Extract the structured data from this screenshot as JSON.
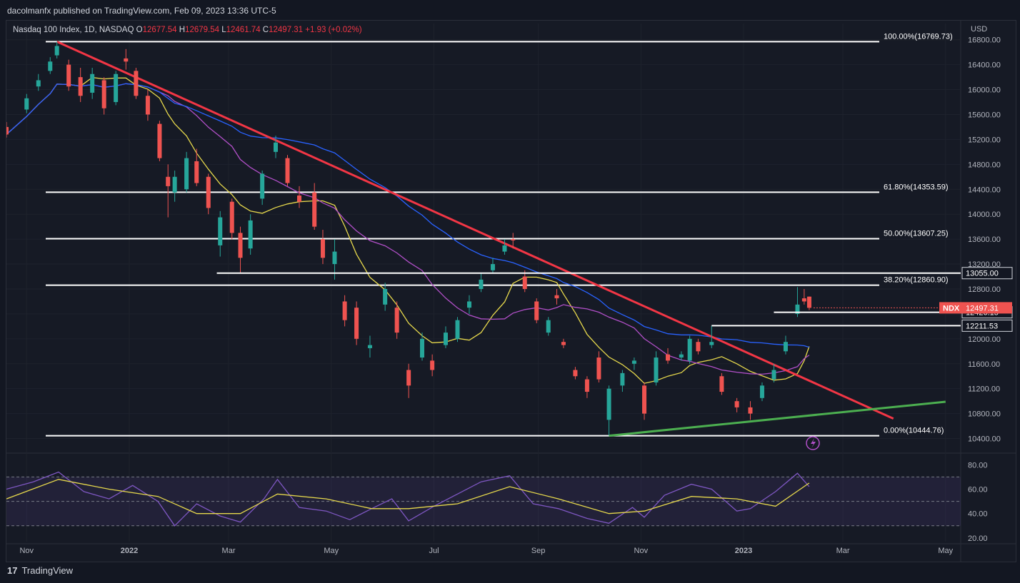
{
  "publisher": "dacolmanfx published on TradingView.com, Feb 09, 2023 13:36 UTC-5",
  "footer": {
    "logo_glyph": "17",
    "brand": "TradingView"
  },
  "legend": {
    "symbol": "Nasdaq 100 Index, 1D, NASDAQ",
    "o_label": "O",
    "o": "12677.54",
    "h_label": "H",
    "h": "12679.54",
    "l_label": "L",
    "l": "12461.74",
    "c_label": "C",
    "c": "12497.31",
    "change": "+1.93 (+0.02%)"
  },
  "colors": {
    "background": "#131722",
    "up": "#26a69a",
    "down": "#ef5350",
    "downtrend": "#f23645",
    "uptrend": "#4caf50",
    "ma50": "#e6d84c",
    "ma100": "#b04fc7",
    "ma200": "#2962ff",
    "rsi": "#7e57c2",
    "rsi_signal": "#e6d84c",
    "fib": "#ffffff"
  },
  "chart_data": [
    {
      "type": "candlestick",
      "currency": "USD",
      "y_ticks": [
        "16800.00",
        "16400.00",
        "16000.00",
        "15600.00",
        "15200.00",
        "14800.00",
        "14400.00",
        "14000.00",
        "13600.00",
        "13200.00",
        "12800.00",
        "12400.00",
        "12000.00",
        "11600.00",
        "11200.00",
        "10800.00",
        "10400.00"
      ],
      "ylim": [
        10200,
        17060
      ],
      "x_ticks": [
        "Nov",
        "2022",
        "Mar",
        "May",
        "Jul",
        "Sep",
        "Nov",
        "2023",
        "Mar",
        "May"
      ],
      "xlim": [
        "2021-10-20",
        "2023-05-10"
      ],
      "fib_levels": [
        {
          "label": "100.00%(16769.73)",
          "value": 16769.73
        },
        {
          "label": "61.80%(14353.59)",
          "value": 14353.59
        },
        {
          "label": "50.00%(13607.25)",
          "value": 13607.25
        },
        {
          "label": "38.20%(12860.90)",
          "value": 12860.9
        },
        {
          "label": "0.00%(10444.76)",
          "value": 10444.76
        }
      ],
      "horizontal_lines": [
        {
          "value": 13055.0,
          "label": "13055.00",
          "from": "2022-02-22"
        },
        {
          "value": 12426.15,
          "label": "12426.15",
          "from": "2023-01-19"
        },
        {
          "value": 12211.53,
          "label": "12211.53",
          "from": "2022-12-13"
        }
      ],
      "last_price": {
        "label": "NDX",
        "value": "12497.31"
      },
      "trendlines": [
        {
          "name": "",
          "points": [
            [
              "2021-11-19",
              16769.73
            ],
            [
              "2023-03-31",
              10720
            ]
          ]
        },
        {
          "name": "",
          "points": [
            [
              "2022-10-13",
              10444.76
            ],
            [
              "2023-05-01",
              10990
            ]
          ]
        }
      ],
      "ma_periods": [
        50,
        100,
        200
      ],
      "candles": [
        [
          "2021-10-20",
          15400,
          15280,
          15480,
          15230
        ],
        [
          "2021-11-01",
          15680,
          15860,
          15930,
          15620
        ],
        [
          "2021-11-08",
          16050,
          16150,
          16250,
          15980
        ],
        [
          "2021-11-15",
          16300,
          16450,
          16520,
          16250
        ],
        [
          "2021-11-19",
          16550,
          16700,
          16770,
          16500
        ],
        [
          "2021-11-26",
          16400,
          16050,
          16480,
          15980
        ],
        [
          "2021-12-03",
          16200,
          15900,
          16350,
          15800
        ],
        [
          "2021-12-10",
          15950,
          16250,
          16350,
          15850
        ],
        [
          "2021-12-17",
          16150,
          15700,
          16200,
          15600
        ],
        [
          "2021-12-24",
          15800,
          16250,
          16300,
          15750
        ],
        [
          "2021-12-30",
          16500,
          16450,
          16650,
          16320
        ],
        [
          "2022-01-05",
          16300,
          15900,
          16350,
          15850
        ],
        [
          "2022-01-12",
          15900,
          15600,
          16000,
          15500
        ],
        [
          "2022-01-19",
          15450,
          14900,
          15500,
          14850
        ],
        [
          "2022-01-24",
          14600,
          14450,
          14800,
          13950
        ],
        [
          "2022-01-28",
          14350,
          14600,
          14700,
          14200
        ],
        [
          "2022-02-04",
          14400,
          14900,
          15000,
          14350
        ],
        [
          "2022-02-10",
          14850,
          14500,
          15050,
          14450
        ],
        [
          "2022-02-17",
          14600,
          14100,
          14650,
          14000
        ],
        [
          "2022-02-24",
          13500,
          13950,
          14050,
          13320
        ],
        [
          "2022-03-03",
          14200,
          13700,
          14250,
          13600
        ],
        [
          "2022-03-08",
          13700,
          13300,
          13800,
          13050
        ],
        [
          "2022-03-14",
          13450,
          13900,
          14000,
          13350
        ],
        [
          "2022-03-21",
          14250,
          14650,
          14700,
          14150
        ],
        [
          "2022-03-29",
          15000,
          15150,
          15260,
          14900
        ],
        [
          "2022-04-05",
          14900,
          14500,
          14950,
          14450
        ],
        [
          "2022-04-12",
          14300,
          14200,
          14450,
          14100
        ],
        [
          "2022-04-21",
          14350,
          13800,
          14500,
          13750
        ],
        [
          "2022-04-26",
          13600,
          13300,
          13750,
          13200
        ],
        [
          "2022-05-03",
          13200,
          13400,
          13600,
          12950
        ],
        [
          "2022-05-09",
          12600,
          12300,
          12700,
          12200
        ],
        [
          "2022-05-16",
          12500,
          12000,
          12600,
          11900
        ],
        [
          "2022-05-24",
          11850,
          11900,
          12050,
          11700
        ],
        [
          "2022-06-02",
          12550,
          12800,
          12900,
          12450
        ],
        [
          "2022-06-09",
          12500,
          12100,
          12600,
          12000
        ],
        [
          "2022-06-16",
          11500,
          11250,
          11600,
          11050
        ],
        [
          "2022-06-24",
          11700,
          12000,
          12100,
          11650
        ],
        [
          "2022-06-30",
          11650,
          11500,
          11750,
          11400
        ],
        [
          "2022-07-08",
          11900,
          12100,
          12200,
          11850
        ],
        [
          "2022-07-15",
          12000,
          12300,
          12350,
          11950
        ],
        [
          "2022-07-22",
          12500,
          12600,
          12700,
          12400
        ],
        [
          "2022-07-29",
          12800,
          12950,
          13050,
          12750
        ],
        [
          "2022-08-05",
          13100,
          13200,
          13300,
          13050
        ],
        [
          "2022-08-12",
          13400,
          13500,
          13600,
          13350
        ],
        [
          "2022-08-17",
          13600,
          13580,
          13700,
          13450
        ],
        [
          "2022-08-24",
          13000,
          12800,
          13100,
          12750
        ],
        [
          "2022-08-31",
          12600,
          12300,
          12650,
          12250
        ],
        [
          "2022-09-07",
          12100,
          12300,
          12350,
          12050
        ],
        [
          "2022-09-12",
          12700,
          12650,
          12800,
          12550
        ],
        [
          "2022-09-16",
          11950,
          11900,
          12000,
          11850
        ],
        [
          "2022-09-23",
          11500,
          11400,
          11550,
          11350
        ],
        [
          "2022-09-30",
          11350,
          11150,
          11400,
          11050
        ],
        [
          "2022-10-07",
          11700,
          11350,
          11800,
          11300
        ],
        [
          "2022-10-13",
          10700,
          11200,
          11250,
          10450
        ],
        [
          "2022-10-21",
          11250,
          11450,
          11500,
          11150
        ],
        [
          "2022-10-28",
          11600,
          11650,
          11700,
          11500
        ],
        [
          "2022-11-03",
          11250,
          10800,
          11300,
          10700
        ],
        [
          "2022-11-10",
          11300,
          11700,
          11800,
          11250
        ],
        [
          "2022-11-17",
          11750,
          11650,
          11850,
          11600
        ],
        [
          "2022-11-25",
          11700,
          11750,
          11800,
          11650
        ],
        [
          "2022-11-30",
          11650,
          12000,
          12050,
          11600
        ],
        [
          "2022-12-05",
          11950,
          11800,
          12000,
          11750
        ],
        [
          "2022-12-13",
          11900,
          11950,
          12210,
          11850
        ],
        [
          "2022-12-19",
          11400,
          11150,
          11450,
          11100
        ],
        [
          "2022-12-28",
          11000,
          10900,
          11050,
          10820
        ],
        [
          "2023-01-05",
          10900,
          10800,
          11000,
          10700
        ],
        [
          "2023-01-12",
          11050,
          11250,
          11300,
          11000
        ],
        [
          "2023-01-19",
          11350,
          11500,
          11600,
          11300
        ],
        [
          "2023-01-26",
          11800,
          11950,
          12050,
          11750
        ],
        [
          "2023-02-02",
          12400,
          12550,
          12830,
          12350
        ],
        [
          "2023-02-06",
          12650,
          12600,
          12800,
          12550
        ],
        [
          "2023-02-09",
          12677.54,
          12497.31,
          12679.54,
          12461.74
        ]
      ]
    },
    {
      "type": "line",
      "name": "RSI",
      "y_ticks": [
        "80.00",
        "60.00",
        "40.00",
        "20.00"
      ],
      "ylim": [
        17,
        86
      ],
      "bands": [
        30,
        50,
        70
      ],
      "series": [
        {
          "name": "",
          "x": [
            "2021-10-20",
            "2021-11-05",
            "2021-11-20",
            "2021-12-05",
            "2021-12-20",
            "2022-01-03",
            "2022-01-18",
            "2022-01-28",
            "2022-02-10",
            "2022-02-24",
            "2022-03-08",
            "2022-03-22",
            "2022-03-30",
            "2022-04-12",
            "2022-04-28",
            "2022-05-12",
            "2022-05-25",
            "2022-06-06",
            "2022-06-16",
            "2022-07-01",
            "2022-07-15",
            "2022-07-29",
            "2022-08-15",
            "2022-08-29",
            "2022-09-13",
            "2022-09-30",
            "2022-10-13",
            "2022-10-27",
            "2022-11-03",
            "2022-11-15",
            "2022-12-01",
            "2022-12-13",
            "2022-12-28",
            "2023-01-05",
            "2023-01-20",
            "2023-02-02",
            "2023-02-09"
          ],
          "values": [
            60,
            66,
            74,
            58,
            52,
            63,
            50,
            30,
            48,
            38,
            33,
            52,
            68,
            45,
            42,
            35,
            44,
            52,
            34,
            46,
            56,
            66,
            71,
            48,
            44,
            36,
            32,
            45,
            37,
            55,
            64,
            60,
            42,
            44,
            58,
            73,
            62
          ]
        },
        {
          "name": "",
          "x": [
            "2021-10-20",
            "2021-11-20",
            "2021-12-20",
            "2022-01-18",
            "2022-02-10",
            "2022-03-08",
            "2022-03-30",
            "2022-04-28",
            "2022-05-25",
            "2022-06-16",
            "2022-07-15",
            "2022-08-15",
            "2022-09-13",
            "2022-10-13",
            "2022-11-03",
            "2022-12-01",
            "2022-12-28",
            "2023-01-20",
            "2023-02-09"
          ],
          "values": [
            52,
            68,
            60,
            54,
            40,
            40,
            56,
            52,
            44,
            44,
            48,
            62,
            52,
            40,
            42,
            54,
            52,
            46,
            65
          ]
        }
      ]
    }
  ]
}
